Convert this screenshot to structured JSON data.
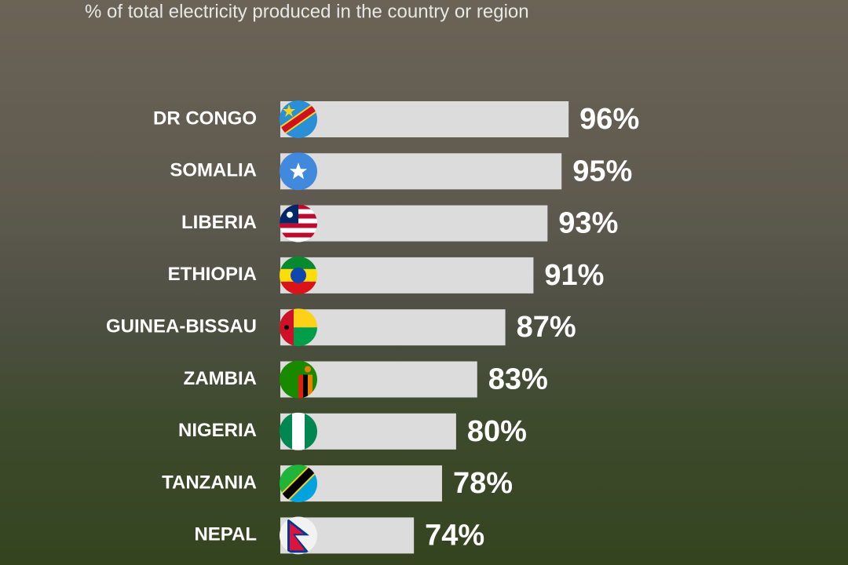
{
  "chart_data": {
    "type": "bar",
    "orientation": "horizontal",
    "subtitle": "% of total electricity produced in the country or region",
    "categories": [
      "DR CONGO",
      "SOMALIA",
      "LIBERIA",
      "ETHIOPIA",
      "GUINEA-BISSAU",
      "ZAMBIA",
      "NIGERIA",
      "TANZANIA",
      "NEPAL"
    ],
    "values": [
      96,
      95,
      93,
      91,
      87,
      83,
      80,
      78,
      74
    ],
    "value_labels": [
      "96%",
      "95%",
      "93%",
      "91%",
      "87%",
      "83%",
      "80%",
      "78%",
      "74%"
    ],
    "color": "#dcdcdc",
    "xlim": [
      55,
      100
    ]
  }
}
